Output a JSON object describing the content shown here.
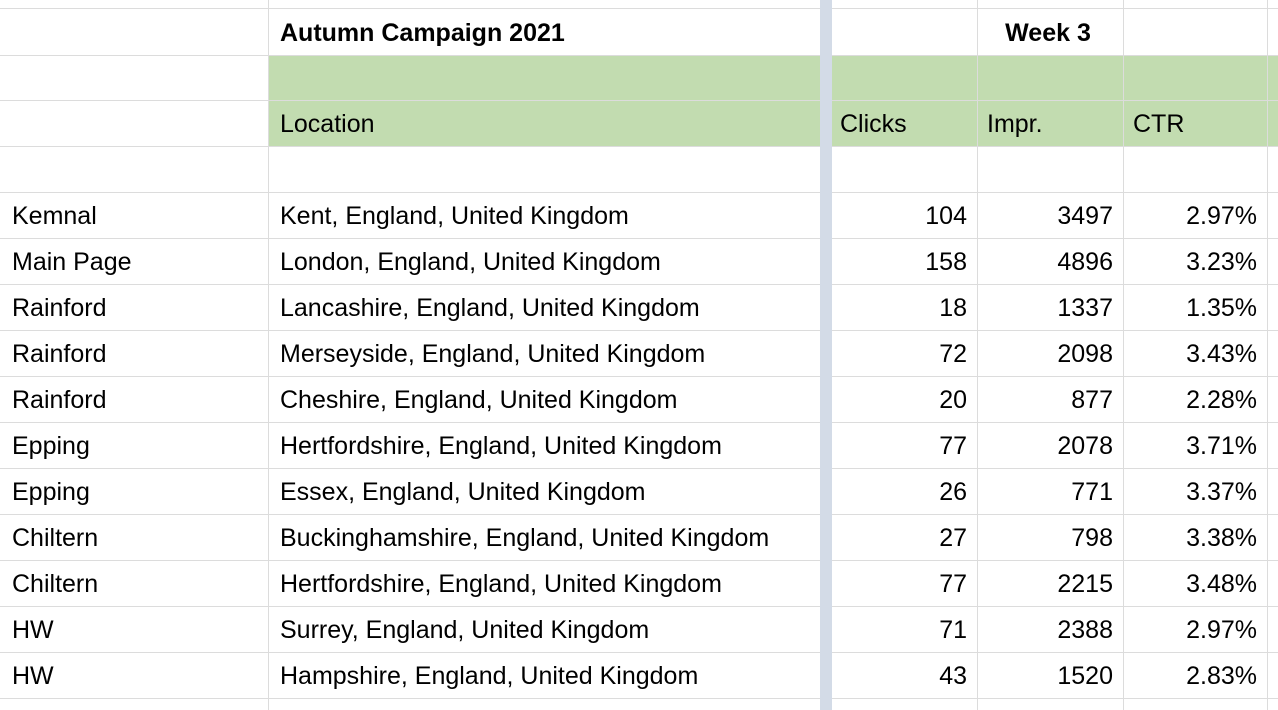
{
  "sheet": {
    "title": "Autumn Campaign 2021",
    "week_label": "Week 3",
    "headers": {
      "location": "Location",
      "clicks": "Clicks",
      "impr": "Impr.",
      "ctr": "CTR"
    },
    "colors": {
      "header_fill": "#c2dcb0",
      "freeze_bar": "#d3dbe7",
      "gridline": "#dcdcdc"
    },
    "rows": [
      {
        "name": "Kemnal",
        "location": "Kent, England, United Kingdom",
        "clicks": "104",
        "impr": "3497",
        "ctr": "2.97%"
      },
      {
        "name": "Main Page",
        "location": "London, England, United Kingdom",
        "clicks": "158",
        "impr": "4896",
        "ctr": "3.23%"
      },
      {
        "name": "Rainford",
        "location": "Lancashire, England, United Kingdom",
        "clicks": "18",
        "impr": "1337",
        "ctr": "1.35%"
      },
      {
        "name": "Rainford",
        "location": "Merseyside, England, United Kingdom",
        "clicks": "72",
        "impr": "2098",
        "ctr": "3.43%"
      },
      {
        "name": "Rainford",
        "location": "Cheshire, England, United Kingdom",
        "clicks": "20",
        "impr": "877",
        "ctr": "2.28%"
      },
      {
        "name": "Epping",
        "location": "Hertfordshire, England, United Kingdom",
        "clicks": "77",
        "impr": "2078",
        "ctr": "3.71%"
      },
      {
        "name": "Epping",
        "location": "Essex, England, United Kingdom",
        "clicks": "26",
        "impr": "771",
        "ctr": "3.37%"
      },
      {
        "name": "Chiltern",
        "location": "Buckinghamshire, England, United Kingdom",
        "clicks": "27",
        "impr": "798",
        "ctr": "3.38%"
      },
      {
        "name": "Chiltern",
        "location": "Hertfordshire, England, United Kingdom",
        "clicks": "77",
        "impr": "2215",
        "ctr": "3.48%"
      },
      {
        "name": "HW",
        "location": "Surrey, England, United Kingdom",
        "clicks": "71",
        "impr": "2388",
        "ctr": "2.97%"
      },
      {
        "name": "HW",
        "location": "Hampshire, England, United Kingdom",
        "clicks": "43",
        "impr": "1520",
        "ctr": "2.83%"
      }
    ]
  }
}
